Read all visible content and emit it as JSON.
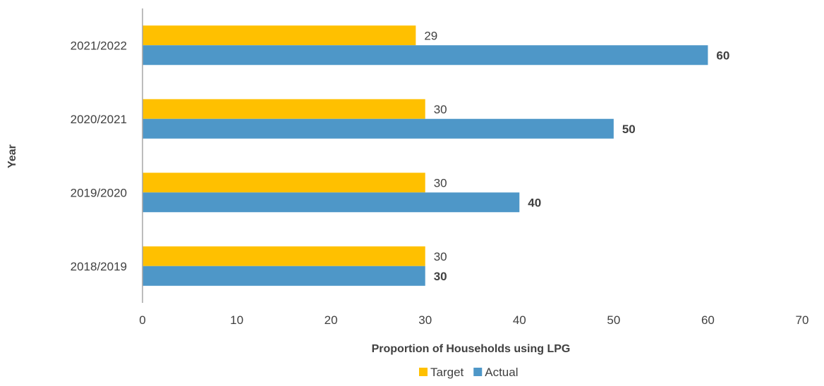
{
  "chart_data": {
    "type": "bar",
    "orientation": "horizontal",
    "categories": [
      "2021/2022",
      "2020/2021",
      "2019/2020",
      "2018/2019"
    ],
    "series": [
      {
        "name": "Target",
        "values": [
          29,
          30,
          30,
          30
        ],
        "color": "#FFC000"
      },
      {
        "name": "Actual",
        "values": [
          60,
          50,
          40,
          30
        ],
        "color": "#4E97C8"
      }
    ],
    "xlabel": "Proportion of Households using LPG",
    "ylabel": "Year",
    "xlim": [
      0,
      70
    ],
    "xticks": [
      0,
      10,
      20,
      30,
      40,
      50,
      60,
      70
    ],
    "grid": false,
    "legend": "bottom"
  }
}
